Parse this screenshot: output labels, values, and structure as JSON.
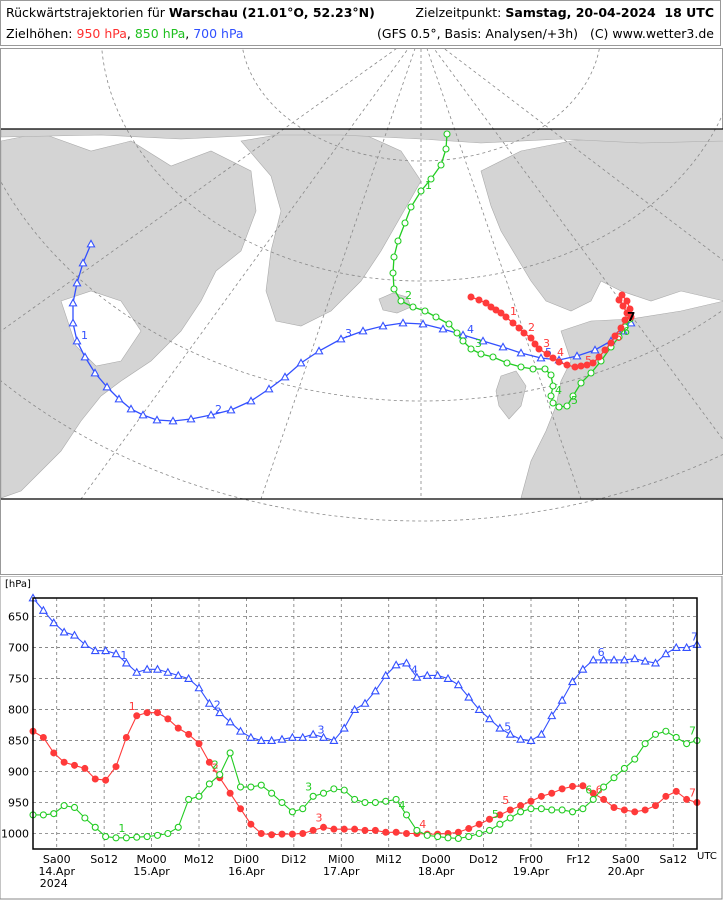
{
  "header": {
    "title_prefix": "Rückwärtstrajektorien für",
    "location": "Warschau",
    "coords": "(21.01°O, 52.23°N)",
    "target_label": "Zielzeitpunkt:",
    "target_time": "Samstag, 20-04-2024  18 UTC",
    "levels_label": "Zielhöhen:",
    "level_950": "950 hPa",
    "level_850": "850 hPa",
    "level_700": "700 hPa",
    "model_info": "(GFS 0.5°, Basis: Analysen/+3h)",
    "copyright": "(C) www.wetter3.de"
  },
  "colors": {
    "c950": "#ff3a3a",
    "c850": "#22cc22",
    "c700": "#3350ff",
    "land": "#d3d3d3",
    "grid": "#888888"
  },
  "chart_data": {
    "type": "line",
    "ylabel": "[hPa]",
    "xunit": "UTC",
    "ylim": [
      1025,
      620
    ],
    "y_ticks": [
      650,
      700,
      750,
      800,
      850,
      900,
      950,
      1000
    ],
    "x_ticks": [
      {
        "t": 6,
        "label": "Sa00",
        "date": "14.Apr",
        "year": "2024"
      },
      {
        "t": 18,
        "label": "So12",
        "date": "",
        "year": ""
      },
      {
        "t": 30,
        "label": "Mo00",
        "date": "15.Apr",
        "year": ""
      },
      {
        "t": 42,
        "label": "Mo12",
        "date": "",
        "year": ""
      },
      {
        "t": 54,
        "label": "Di00",
        "date": "16.Apr",
        "year": ""
      },
      {
        "t": 66,
        "label": "Di12",
        "date": "",
        "year": ""
      },
      {
        "t": 78,
        "label": "Mi00",
        "date": "17.Apr",
        "year": ""
      },
      {
        "t": 90,
        "label": "Mi12",
        "date": "",
        "year": ""
      },
      {
        "t": 102,
        "label": "Do00",
        "date": "18.Apr",
        "year": ""
      },
      {
        "t": 114,
        "label": "Do12",
        "date": "",
        "year": ""
      },
      {
        "t": 126,
        "label": "Fr00",
        "date": "19.Apr",
        "year": ""
      },
      {
        "t": 138,
        "label": "Fr12",
        "date": "",
        "year": ""
      },
      {
        "t": 150,
        "label": "Sa00",
        "date": "20.Apr",
        "year": ""
      },
      {
        "t": 162,
        "label": "Sa12",
        "date": "",
        "year": ""
      }
    ],
    "xlim": [
      0,
      168
    ],
    "series": [
      {
        "name": "950 hPa",
        "marker": "filled-circle",
        "color": "#ff3a3a",
        "values": [
          835,
          845,
          870,
          885,
          890,
          895,
          912,
          914,
          892,
          845,
          810,
          805,
          805,
          815,
          830,
          840,
          855,
          885,
          910,
          935,
          960,
          985,
          1000,
          1002,
          1001,
          1001,
          1000,
          995,
          990,
          993,
          993,
          993,
          995,
          995,
          998,
          998,
          1000,
          1000,
          1001,
          1001,
          1000,
          998,
          992,
          985,
          977,
          970,
          962,
          955,
          948,
          940,
          935,
          928,
          924,
          923,
          935,
          945,
          958,
          962,
          965,
          962,
          955,
          940,
          932,
          945,
          950
        ],
        "day_labels": [
          {
            "i": 10,
            "n": "1"
          },
          {
            "i": 18,
            "n": "2"
          },
          {
            "i": 28,
            "n": "3"
          },
          {
            "i": 38,
            "n": "4"
          },
          {
            "i": 46,
            "n": "5"
          },
          {
            "i": 55,
            "n": "6"
          },
          {
            "i": 64,
            "n": "7"
          }
        ]
      },
      {
        "name": "850 hPa",
        "marker": "open-circle",
        "color": "#22cc22",
        "values": [
          970,
          970,
          968,
          955,
          958,
          975,
          990,
          1005,
          1007,
          1007,
          1006,
          1005,
          1003,
          1000,
          990,
          945,
          940,
          920,
          905,
          870,
          925,
          925,
          922,
          935,
          950,
          965,
          960,
          940,
          935,
          928,
          930,
          945,
          950,
          950,
          948,
          945,
          970,
          995,
          1003,
          1005,
          1007,
          1008,
          1005,
          1000,
          995,
          985,
          975,
          965,
          960,
          960,
          962,
          962,
          965,
          960,
          945,
          925,
          910,
          895,
          880,
          855,
          840,
          835,
          845,
          855,
          850
        ],
        "day_labels": [
          {
            "i": 9,
            "n": "1"
          },
          {
            "i": 18,
            "n": "2"
          },
          {
            "i": 27,
            "n": "3"
          },
          {
            "i": 36,
            "n": "4"
          },
          {
            "i": 45,
            "n": "5"
          },
          {
            "i": 54,
            "n": "6"
          },
          {
            "i": 64,
            "n": "7"
          }
        ]
      },
      {
        "name": "700 hPa",
        "marker": "open-triangle",
        "color": "#3350ff",
        "values": [
          620,
          640,
          660,
          675,
          680,
          695,
          705,
          705,
          710,
          725,
          740,
          735,
          735,
          740,
          745,
          750,
          765,
          790,
          805,
          820,
          835,
          845,
          850,
          850,
          848,
          845,
          845,
          840,
          845,
          850,
          830,
          800,
          790,
          770,
          745,
          728,
          725,
          748,
          745,
          745,
          750,
          760,
          780,
          800,
          815,
          830,
          840,
          848,
          850,
          840,
          810,
          785,
          755,
          735,
          720,
          720,
          720,
          720,
          718,
          722,
          725,
          710,
          700,
          700,
          695
        ],
        "day_labels": [
          {
            "i": 9,
            "n": "1"
          },
          {
            "i": 18,
            "n": "2"
          },
          {
            "i": 28,
            "n": "3"
          },
          {
            "i": 37,
            "n": "4"
          },
          {
            "i": 46,
            "n": "5"
          },
          {
            "i": 55,
            "n": "6"
          },
          {
            "i": 64,
            "n": "7"
          }
        ]
      }
    ]
  },
  "map": {
    "endpoint_label": "7",
    "traj_950": [
      [
        470,
        296
      ],
      [
        478,
        299
      ],
      [
        485,
        302
      ],
      [
        490,
        306
      ],
      [
        495,
        309
      ],
      [
        500,
        312
      ],
      [
        505,
        316
      ],
      [
        512,
        322
      ],
      [
        518,
        327
      ],
      [
        523,
        332
      ],
      [
        530,
        337
      ],
      [
        534,
        343
      ],
      [
        538,
        348
      ],
      [
        546,
        353
      ],
      [
        552,
        357
      ],
      [
        558,
        361
      ],
      [
        566,
        364
      ],
      [
        574,
        366
      ],
      [
        580,
        365
      ],
      [
        586,
        364
      ],
      [
        592,
        362
      ],
      [
        598,
        356
      ],
      [
        604,
        349
      ],
      [
        610,
        342
      ],
      [
        614,
        335
      ],
      [
        620,
        327
      ],
      [
        624,
        319
      ],
      [
        626,
        312
      ],
      [
        622,
        305
      ],
      [
        618,
        299
      ],
      [
        621,
        294
      ],
      [
        626,
        300
      ],
      [
        629,
        308
      ],
      [
        630,
        316
      ]
    ],
    "traj_850": [
      [
        446,
        133
      ],
      [
        445,
        148
      ],
      [
        440,
        164
      ],
      [
        430,
        178
      ],
      [
        420,
        190
      ],
      [
        410,
        206
      ],
      [
        404,
        222
      ],
      [
        397,
        240
      ],
      [
        393,
        256
      ],
      [
        392,
        272
      ],
      [
        393,
        288
      ],
      [
        400,
        300
      ],
      [
        412,
        306
      ],
      [
        424,
        310
      ],
      [
        435,
        316
      ],
      [
        448,
        323
      ],
      [
        456,
        332
      ],
      [
        462,
        340
      ],
      [
        470,
        348
      ],
      [
        480,
        353
      ],
      [
        492,
        356
      ],
      [
        506,
        362
      ],
      [
        520,
        366
      ],
      [
        532,
        368
      ],
      [
        544,
        368
      ],
      [
        550,
        374
      ],
      [
        552,
        385
      ],
      [
        550,
        395
      ],
      [
        552,
        402
      ],
      [
        558,
        406
      ],
      [
        566,
        405
      ],
      [
        572,
        395
      ],
      [
        580,
        382
      ],
      [
        590,
        372
      ],
      [
        600,
        360
      ],
      [
        610,
        346
      ],
      [
        618,
        336
      ],
      [
        624,
        326
      ],
      [
        629,
        318
      ]
    ],
    "traj_700": [
      [
        90,
        243
      ],
      [
        82,
        262
      ],
      [
        76,
        282
      ],
      [
        72,
        302
      ],
      [
        72,
        322
      ],
      [
        76,
        340
      ],
      [
        84,
        356
      ],
      [
        94,
        372
      ],
      [
        106,
        386
      ],
      [
        118,
        398
      ],
      [
        130,
        408
      ],
      [
        142,
        414
      ],
      [
        156,
        419
      ],
      [
        172,
        420
      ],
      [
        190,
        418
      ],
      [
        210,
        414
      ],
      [
        230,
        409
      ],
      [
        250,
        400
      ],
      [
        268,
        388
      ],
      [
        284,
        376
      ],
      [
        300,
        362
      ],
      [
        318,
        350
      ],
      [
        340,
        338
      ],
      [
        362,
        330
      ],
      [
        382,
        325
      ],
      [
        402,
        322
      ],
      [
        422,
        323
      ],
      [
        442,
        328
      ],
      [
        462,
        334
      ],
      [
        482,
        340
      ],
      [
        502,
        346
      ],
      [
        520,
        352
      ],
      [
        540,
        357
      ],
      [
        558,
        359
      ],
      [
        576,
        355
      ],
      [
        594,
        349
      ],
      [
        610,
        340
      ],
      [
        622,
        330
      ],
      [
        630,
        322
      ]
    ],
    "labels_950": [
      {
        "i": 6,
        "n": "1"
      },
      {
        "i": 9,
        "n": "2"
      },
      {
        "i": 12,
        "n": "3"
      },
      {
        "i": 14,
        "n": "4"
      },
      {
        "i": 18,
        "n": "5"
      },
      {
        "i": 23,
        "n": "6"
      }
    ],
    "labels_850": [
      {
        "i": 4,
        "n": "1"
      },
      {
        "i": 11,
        "n": "2"
      },
      {
        "i": 18,
        "n": "3"
      },
      {
        "i": 27,
        "n": "4"
      },
      {
        "i": 30,
        "n": "5"
      },
      {
        "i": 36,
        "n": "6"
      }
    ],
    "labels_700": [
      {
        "i": 5,
        "n": "1"
      },
      {
        "i": 15,
        "n": "2"
      },
      {
        "i": 22,
        "n": "3"
      },
      {
        "i": 28,
        "n": "4"
      },
      {
        "i": 32,
        "n": "5"
      },
      {
        "i": 36,
        "n": "6"
      }
    ]
  }
}
